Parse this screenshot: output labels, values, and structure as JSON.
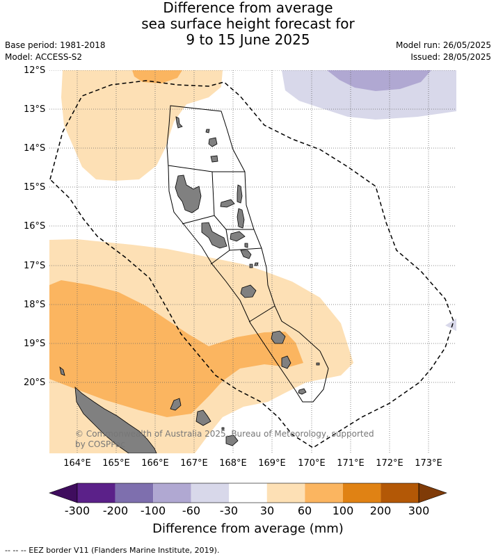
{
  "title": {
    "line1": "Difference from average",
    "line2": "sea surface height forecast for",
    "line3": "9 to 15 June 2025"
  },
  "meta_left": {
    "base_period": "Base period: 1981-2018",
    "model": "Model: ACCESS-S2"
  },
  "meta_right": {
    "model_run": "Model run: 26/05/2025",
    "issued": "Issued: 28/05/2025"
  },
  "map": {
    "lat_labels": [
      "12°S",
      "13°S",
      "14°S",
      "15°S",
      "16°S",
      "17°S",
      "18°S",
      "19°S",
      "20°S"
    ],
    "lon_labels": [
      "164°E",
      "165°E",
      "166°E",
      "167°E",
      "168°E",
      "169°E",
      "170°E",
      "171°E",
      "172°E",
      "173°E"
    ],
    "copyright_line1": "© Commonwealth of Australia 2025, Bureau of Meteorology, supported",
    "copyright_line2": "by COSPPac",
    "colors": {
      "land": "#808080",
      "band_30_60": "#fde0b5",
      "band_60_100": "#fbb560",
      "band_m30_m60": "#d8d8ea",
      "band_m60_m100": "#b0a8d2"
    }
  },
  "colorbar": {
    "ticks": [
      "-300",
      "-200",
      "-100",
      "-60",
      "-30",
      "30",
      "60",
      "100",
      "200",
      "300"
    ],
    "colors": [
      "#3f0d5e",
      "#5b2189",
      "#7e6fae",
      "#b0a8d2",
      "#d8d8ea",
      "#ffffff",
      "#fde0b5",
      "#fbb560",
      "#e08214",
      "#b35806",
      "#7f3b08"
    ],
    "label": "Difference from average (mm)"
  },
  "footer": "-- -- -- EEZ border V11 (Flanders Marine Institute, 2019)."
}
